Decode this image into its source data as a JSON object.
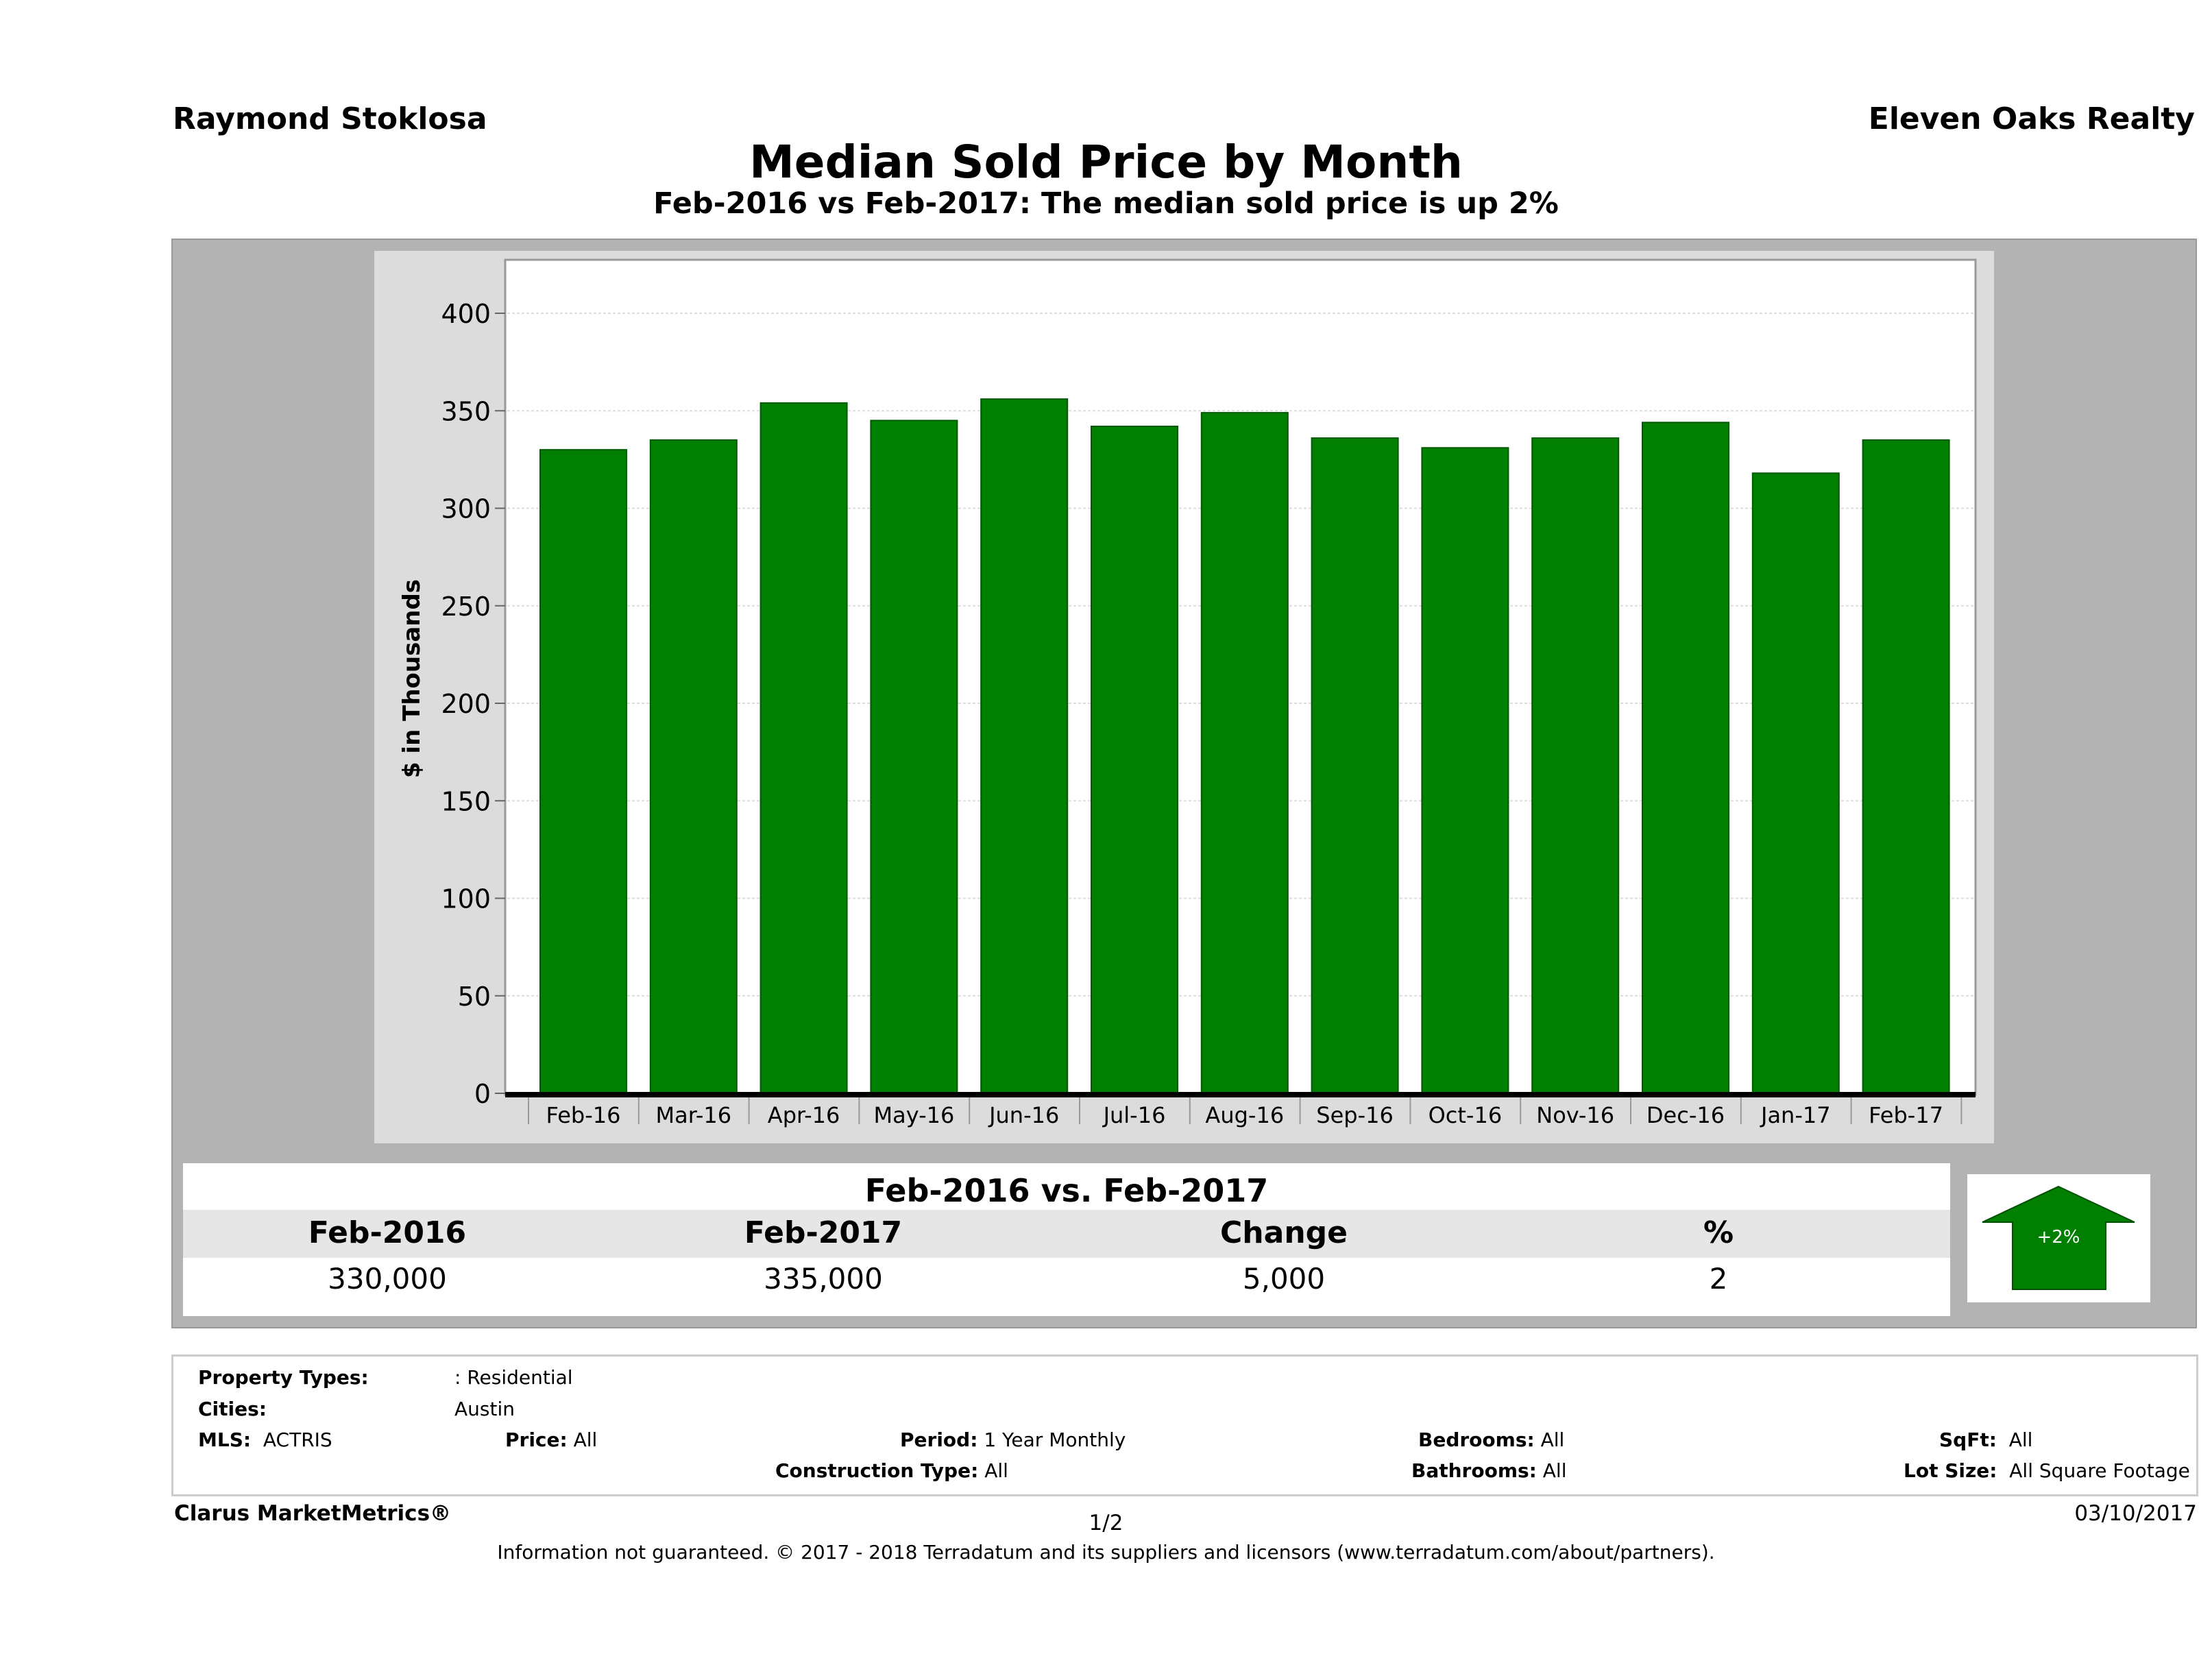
{
  "header": {
    "agent": "Raymond Stoklosa",
    "brokerage": "Eleven Oaks Realty",
    "title": "Median Sold Price by Month",
    "subtitle": "Feb-2016 vs Feb-2017: The median sold price is up 2%"
  },
  "chart_data": {
    "type": "bar",
    "title": "Median Sold Price by Month",
    "ylabel": "$ in Thousands",
    "xlabel": "",
    "ylim": [
      0,
      400
    ],
    "yticks": [
      "0",
      "50",
      "100",
      "150",
      "200",
      "250",
      "300",
      "350",
      "400"
    ],
    "grid": true,
    "categories": [
      "Feb-16",
      "Mar-16",
      "Apr-16",
      "May-16",
      "Jun-16",
      "Jul-16",
      "Aug-16",
      "Sep-16",
      "Oct-16",
      "Nov-16",
      "Dec-16",
      "Jan-17",
      "Feb-17"
    ],
    "values": [
      330,
      335,
      354,
      345,
      356,
      342,
      349,
      336,
      331,
      336,
      344,
      318,
      335
    ],
    "bar_color": "#007f00"
  },
  "comparison": {
    "title": "Feb-2016 vs. Feb-2017",
    "headers": [
      "Feb-2016",
      "Feb-2017",
      "Change",
      "%"
    ],
    "values": [
      "330,000",
      "335,000",
      "5,000",
      "2"
    ],
    "badge": "+2%",
    "badge_icon": "arrow-up-icon",
    "badge_color": "#007f00"
  },
  "filters": {
    "property_types_label": "Property Types:",
    "property_types": ": Residential",
    "cities_label": "Cities:",
    "cities": "Austin",
    "mls_label": "MLS:",
    "mls": "ACTRIS",
    "price_label": "Price:",
    "price": "All",
    "period_label": "Period:",
    "period": "1 Year Monthly",
    "bedrooms_label": "Bedrooms:",
    "bedrooms": "All",
    "sqft_label": "SqFt:",
    "sqft": "All",
    "construction_label": "Construction Type:",
    "construction": "All",
    "bathrooms_label": "Bathrooms:",
    "bathrooms": "All",
    "lot_label": "Lot Size:",
    "lot": "All Square Footage"
  },
  "footer": {
    "brand": "Clarus MarketMetrics®",
    "page": "1/2",
    "date": "03/10/2017",
    "disclaimer": "Information not guaranteed. © 2017 - 2018 Terradatum and its suppliers and licensors (www.terradatum.com/about/partners)."
  }
}
